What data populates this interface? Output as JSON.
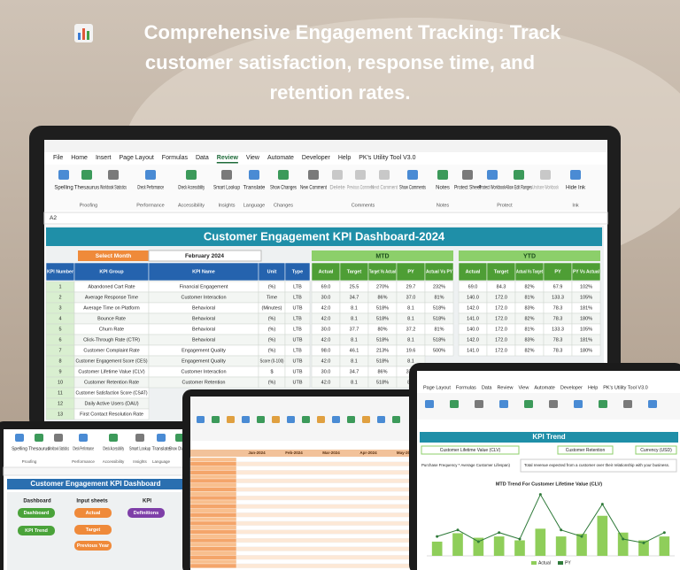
{
  "headline": {
    "lines": [
      "Comprehensive Engagement Tracking: Track",
      "customer satisfaction, response time, and",
      "retention rates."
    ]
  },
  "laptop": {
    "ribbon_tabs": [
      "File",
      "Home",
      "Insert",
      "Page Layout",
      "Formulas",
      "Data",
      "Review",
      "View",
      "Automate",
      "Developer",
      "Help",
      "PK's Utility Tool V3.0"
    ],
    "ribbon_buttons": [
      "Spelling",
      "Thesaurus",
      "Workbook Statistics",
      "Check Performance",
      "Check Accessibility",
      "Smart Lookup",
      "Translate",
      "Show Changes",
      "New Comment",
      "Delete",
      "Previous Comment",
      "Next Comment",
      "Show Comments",
      "Notes",
      "Protect Sheet",
      "Protect Workbook",
      "Allow Edit Ranges",
      "Unshare Workbook",
      "Hide Ink"
    ],
    "ribbon_groups": [
      "Proofing",
      "Performance",
      "Accessibility",
      "Insights",
      "Language",
      "Changes",
      "Comments",
      "Notes",
      "Protect",
      "Ink"
    ],
    "name_box": "A2",
    "dashboard": {
      "title": "Customer Engagement KPI Dashboard-2024",
      "select_month_label": "Select Month",
      "select_month_value": "February 2024",
      "mtd_label": "MTD",
      "ytd_label": "YTD",
      "headers": [
        "KPI Number",
        "KPI Group",
        "KPI Name",
        "Unit",
        "Type",
        "Actual",
        "Target",
        "Target Vs Actual",
        "PY",
        "Actual Vs PY",
        "Actual",
        "Target",
        "Actual Vs Target",
        "PY",
        "PY Vs Actual"
      ],
      "rows": [
        [
          "1",
          "Abandoned Cart Rate",
          "Financial Engagement",
          "(%)",
          "LTB",
          "69.0",
          "25.5",
          "270%",
          "29.7",
          "232%",
          "69.0",
          "84.3",
          "82%",
          "67.9",
          "102%"
        ],
        [
          "2",
          "Average Response Time",
          "Customer Interaction",
          "Time",
          "LTB",
          "30.0",
          "34.7",
          "86%",
          "37.0",
          "81%",
          "140.0",
          "172.0",
          "81%",
          "133.3",
          "105%"
        ],
        [
          "3",
          "Average Time on Platform",
          "Behavioral",
          "(Minutes)",
          "UTB",
          "42.0",
          "8.1",
          "518%",
          "8.1",
          "518%",
          "142.0",
          "172.0",
          "83%",
          "78.3",
          "181%"
        ],
        [
          "4",
          "Bounce Rate",
          "Behavioral",
          "(%)",
          "LTB",
          "42.0",
          "8.1",
          "518%",
          "8.1",
          "518%",
          "141.0",
          "172.0",
          "82%",
          "78.3",
          "180%"
        ],
        [
          "5",
          "Churn Rate",
          "Behavioral",
          "(%)",
          "LTB",
          "30.0",
          "37.7",
          "80%",
          "37.2",
          "81%",
          "140.0",
          "172.0",
          "81%",
          "133.3",
          "105%"
        ],
        [
          "6",
          "Click-Through Rate (CTR)",
          "Behavioral",
          "(%)",
          "UTB",
          "42.0",
          "8.1",
          "518%",
          "8.1",
          "518%",
          "142.0",
          "172.0",
          "83%",
          "78.3",
          "181%"
        ],
        [
          "7",
          "Customer Complaint Rate",
          "Engagement Quality",
          "(%)",
          "LTB",
          "98.0",
          "46.1",
          "213%",
          "19.6",
          "500%",
          "141.0",
          "172.0",
          "82%",
          "78.3",
          "180%"
        ],
        [
          "8",
          "Customer Engagement Score (CES)",
          "Engagement Quality",
          "Score (0-100)",
          "UTB",
          "42.0",
          "8.1",
          "518%",
          "8.1"
        ],
        [
          "9",
          "Customer Lifetime Value (CLV)",
          "Customer Interaction",
          "$",
          "UTB",
          "30.0",
          "34.7",
          "86%",
          "37.0"
        ],
        [
          "10",
          "Customer Retention Rate",
          "Customer Retention",
          "(%)",
          "UTB",
          "42.0",
          "8.1",
          "518%",
          "8.1"
        ],
        [
          "11",
          "Customer Satisfaction Score (CSAT)"
        ],
        [
          "12",
          "Daily Active Users (DAU)"
        ],
        [
          "13",
          "First Contact Resolution Rate"
        ]
      ]
    }
  },
  "tablet_left": {
    "ribbon_buttons": [
      "Spelling",
      "Thesaurus",
      "Workbook Statistics",
      "Check Performance",
      "Check Accessibility",
      "Smart Lookup",
      "Translate",
      "Show Changes"
    ],
    "ribbon_groups": [
      "Proofing",
      "Performance",
      "Accessibility",
      "Insights",
      "Language"
    ],
    "title": "Customer Engagement KPI Dashboard",
    "sections": [
      "Dashboard",
      "Input sheets",
      "KPI"
    ],
    "buttons": [
      "Dashboard",
      "KPI Trend",
      "Actual",
      "Target",
      "Previous Year",
      "Definitions"
    ]
  },
  "tablet_center": {
    "months": [
      "Jan-2024",
      "Feb-2024",
      "Mar-2024",
      "Apr-2024",
      "May-2024"
    ]
  },
  "tablet_right": {
    "ribbon_tabs": [
      "Page Layout",
      "Formulas",
      "Data",
      "Review",
      "View",
      "Automate",
      "Developer",
      "Help",
      "PK's Utility Tool V3.0"
    ],
    "title": "KPI Trend",
    "kpi_name": "Customer Lifetime Value (CLV)",
    "kpi_group": "Customer Retention",
    "unit": "Currency (USD)",
    "definition": "Total revenue expected from a customer over their relationship with your business.",
    "formula": "Purchase Frequency * Average Customer Lifespan)",
    "chart": {
      "type": "bar",
      "title": "MTD Trend For Customer Lifetime Value (CLV)",
      "ylim": [
        0,
        100
      ],
      "series": [
        {
          "name": "Actual",
          "color": "#8fce5a",
          "values": [
            22,
            35,
            28,
            30,
            24,
            42,
            30,
            34,
            62,
            36,
            24,
            30
          ]
        },
        {
          "name": "PY",
          "color": "#2f7a3a",
          "values": [
            30,
            40,
            22,
            36,
            26,
            95,
            40,
            30,
            80,
            26,
            20,
            36
          ]
        }
      ]
    }
  }
}
